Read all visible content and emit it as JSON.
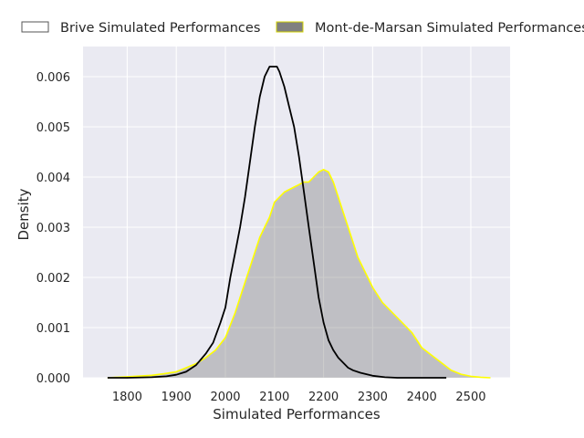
{
  "chart_data": {
    "type": "area",
    "title": "",
    "xlabel": "Simulated Performances",
    "ylabel": "Density",
    "xlim": [
      1710,
      2580
    ],
    "ylim": [
      0,
      0.0066
    ],
    "xticks": [
      1800,
      1900,
      2000,
      2100,
      2200,
      2300,
      2400,
      2500
    ],
    "yticks": [
      0.0,
      0.001,
      0.002,
      0.003,
      0.004,
      0.005,
      0.006
    ],
    "ytick_labels": [
      "0.000",
      "0.001",
      "0.002",
      "0.003",
      "0.004",
      "0.005",
      "0.006"
    ],
    "grid": true,
    "legend_position": "top (outside plot)",
    "series": [
      {
        "name": "Brive Simulated Performances",
        "style": "line",
        "color": "#000000",
        "x": [
          1760,
          1800,
          1850,
          1880,
          1900,
          1920,
          1940,
          1960,
          1975,
          1990,
          2000,
          2010,
          2020,
          2030,
          2040,
          2050,
          2060,
          2070,
          2080,
          2090,
          2100,
          2105,
          2110,
          2120,
          2130,
          2140,
          2150,
          2160,
          2170,
          2180,
          2190,
          2200,
          2210,
          2220,
          2230,
          2240,
          2250,
          2260,
          2275,
          2300,
          2325,
          2350,
          2375,
          2400,
          2450
        ],
        "values": [
          0.0,
          0.0,
          1e-05,
          3e-05,
          6e-05,
          0.00012,
          0.00025,
          0.00048,
          0.0007,
          0.0011,
          0.0014,
          0.002,
          0.0025,
          0.003,
          0.0036,
          0.0043,
          0.005,
          0.0056,
          0.006,
          0.0062,
          0.0062,
          0.0062,
          0.0061,
          0.0058,
          0.0054,
          0.005,
          0.0044,
          0.0037,
          0.003,
          0.0023,
          0.0016,
          0.0011,
          0.00075,
          0.00055,
          0.0004,
          0.0003,
          0.0002,
          0.00015,
          0.0001,
          4e-05,
          1e-05,
          0.0,
          0.0,
          0.0,
          0.0
        ]
      },
      {
        "name": "Mont-de-Marsan Simulated Performances",
        "style": "filled",
        "color": "#ffff00",
        "fill": "#808080",
        "x": [
          1760,
          1800,
          1850,
          1875,
          1900,
          1920,
          1940,
          1960,
          1980,
          2000,
          2010,
          2020,
          2030,
          2040,
          2050,
          2060,
          2070,
          2080,
          2090,
          2100,
          2120,
          2140,
          2150,
          2160,
          2170,
          2180,
          2190,
          2200,
          2210,
          2220,
          2230,
          2240,
          2250,
          2260,
          2270,
          2280,
          2290,
          2300,
          2320,
          2340,
          2360,
          2380,
          2400,
          2420,
          2440,
          2460,
          2480,
          2500,
          2520,
          2540
        ],
        "values": [
          0.0,
          2e-05,
          5e-05,
          8e-05,
          0.00012,
          0.0002,
          0.00028,
          0.0004,
          0.00055,
          0.0008,
          0.00105,
          0.0013,
          0.0016,
          0.0019,
          0.0022,
          0.0025,
          0.0028,
          0.003,
          0.0032,
          0.0035,
          0.0037,
          0.0038,
          0.00385,
          0.0039,
          0.0039,
          0.004,
          0.0041,
          0.00415,
          0.0041,
          0.0039,
          0.0036,
          0.0033,
          0.003,
          0.0027,
          0.0024,
          0.0022,
          0.002,
          0.0018,
          0.0015,
          0.0013,
          0.0011,
          0.0009,
          0.0006,
          0.00045,
          0.0003,
          0.00015,
          7e-05,
          3e-05,
          1e-05,
          0.0
        ]
      }
    ]
  }
}
